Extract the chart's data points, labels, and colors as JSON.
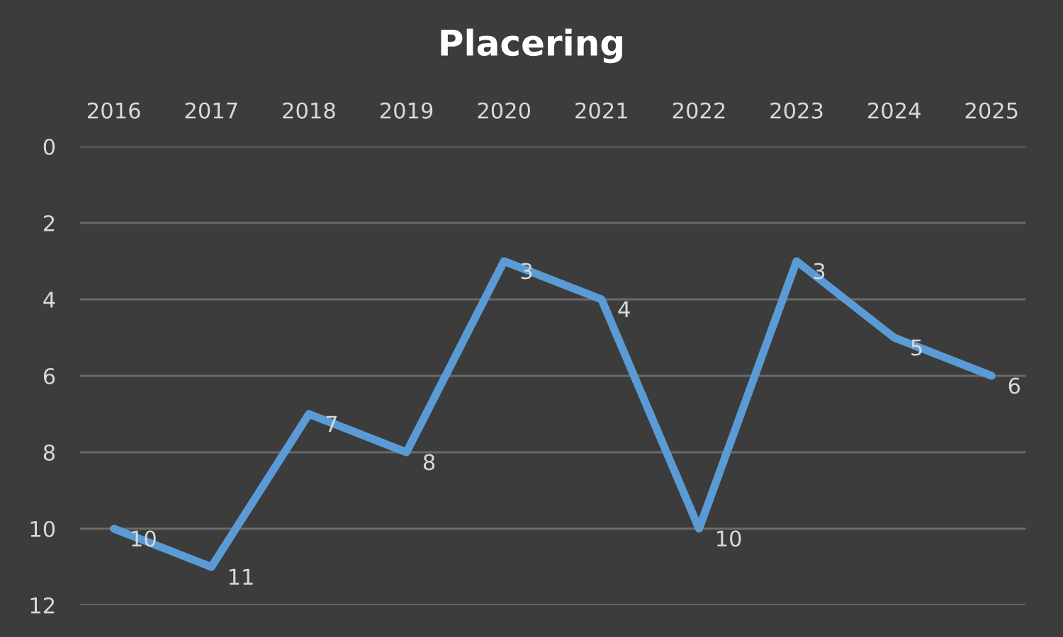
{
  "chart_data": {
    "type": "line",
    "title": "Placering",
    "categories": [
      "2016",
      "2017",
      "2018",
      "2019",
      "2020",
      "2021",
      "2022",
      "2023",
      "2024",
      "2025"
    ],
    "series": [
      {
        "color": "#5b9bd5",
        "values": [
          10,
          11,
          7,
          8,
          3,
          4,
          10,
          3,
          5,
          6
        ]
      }
    ],
    "ylim": [
      12,
      0
    ],
    "yticks": [
      0,
      2,
      4,
      6,
      8,
      10,
      12
    ],
    "grid": "y",
    "data_labels": true,
    "marker": "none",
    "line_style": "solid"
  }
}
